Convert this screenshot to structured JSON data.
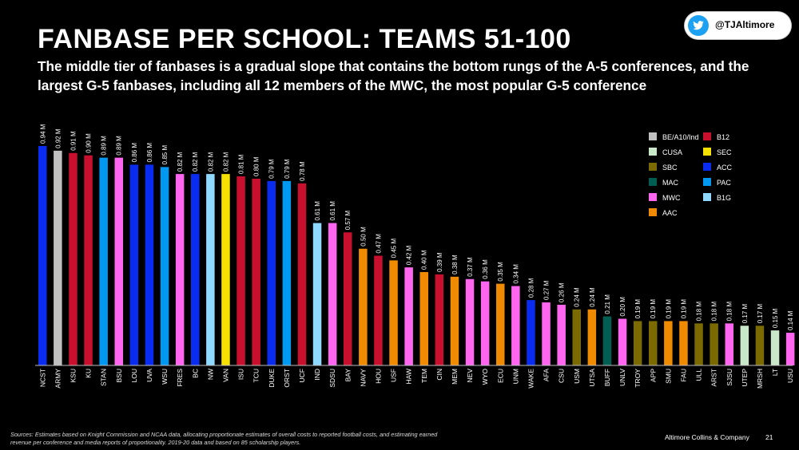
{
  "header": {
    "title": "FANBASE PER SCHOOL:  TEAMS 51-100",
    "subtitle": "The middle tier of fanbases is a gradual slope that contains the bottom rungs of the A-5 conferences, and the largest G-5 fanbases, including all 12 members of the MWC, the most popular G-5 conference",
    "twitter_handle": "@TJAltimore"
  },
  "footer": {
    "sources": "Sources:  Estimates based on Knight Commission and NCAA data, allocating proportionate estimates of overall costs to reported football costs, and estimating earned revenue per conference and media reports of proportionality.  2019-20 data and based on 85 scholarship players.",
    "company": "Altimore Collins & Company",
    "page": "21"
  },
  "colors": {
    "BE/A10/Ind": "#c0c0c0",
    "B12": "#c8102e",
    "CUSA": "#c9e7c9",
    "SEC": "#f5e000",
    "SBC": "#7a6a00",
    "ACC": "#0a2cf0",
    "MAC": "#005f52",
    "PAC": "#0098f0",
    "MWC": "#ff66ef",
    "B1G": "#8fd8ff",
    "AAC": "#f08a00"
  },
  "chart_data": {
    "type": "bar",
    "title": "FANBASE PER SCHOOL:  TEAMS 51-100",
    "ylabel": "",
    "xlabel": "",
    "ylim": [
      0,
      0.94
    ],
    "legend_position": "top-right",
    "legend": [
      {
        "label": "BE/A10/Ind",
        "conf": "BE/A10/Ind"
      },
      {
        "label": "B12",
        "conf": "B12"
      },
      {
        "label": "CUSA",
        "conf": "CUSA"
      },
      {
        "label": "SEC",
        "conf": "SEC"
      },
      {
        "label": "SBC",
        "conf": "SBC"
      },
      {
        "label": "ACC",
        "conf": "ACC"
      },
      {
        "label": "MAC",
        "conf": "MAC"
      },
      {
        "label": "PAC",
        "conf": "PAC"
      },
      {
        "label": "MWC",
        "conf": "MWC"
      },
      {
        "label": "B1G",
        "conf": "B1G"
      },
      {
        "label": "AAC",
        "conf": "AAC"
      }
    ],
    "bars": [
      {
        "team": "NCST",
        "value": 0.94,
        "label": "0.94 M",
        "conf": "ACC"
      },
      {
        "team": "ARMY",
        "value": 0.92,
        "label": "0.92 M",
        "conf": "BE/A10/Ind"
      },
      {
        "team": "KSU",
        "value": 0.91,
        "label": "0.91 M",
        "conf": "B12"
      },
      {
        "team": "KU",
        "value": 0.9,
        "label": "0.90 M",
        "conf": "B12"
      },
      {
        "team": "STAN",
        "value": 0.89,
        "label": "0.89 M",
        "conf": "PAC"
      },
      {
        "team": "BSU",
        "value": 0.89,
        "label": "0.89 M",
        "conf": "MWC"
      },
      {
        "team": "LOU",
        "value": 0.86,
        "label": "0.86 M",
        "conf": "ACC"
      },
      {
        "team": "UVA",
        "value": 0.86,
        "label": "0.86 M",
        "conf": "ACC"
      },
      {
        "team": "WSU",
        "value": 0.85,
        "label": "0.85 M",
        "conf": "PAC"
      },
      {
        "team": "FRES",
        "value": 0.82,
        "label": "0.82 M",
        "conf": "MWC"
      },
      {
        "team": "BC",
        "value": 0.82,
        "label": "0.82 M",
        "conf": "ACC"
      },
      {
        "team": "NW",
        "value": 0.82,
        "label": "0.82 M",
        "conf": "B1G"
      },
      {
        "team": "VAN",
        "value": 0.82,
        "label": "0.82 M",
        "conf": "SEC"
      },
      {
        "team": "ISU",
        "value": 0.81,
        "label": "0.81 M",
        "conf": "B12"
      },
      {
        "team": "TCU",
        "value": 0.8,
        "label": "0.80 M",
        "conf": "B12"
      },
      {
        "team": "DUKE",
        "value": 0.79,
        "label": "0.79 M",
        "conf": "ACC"
      },
      {
        "team": "ORST",
        "value": 0.79,
        "label": "0.79 M",
        "conf": "PAC"
      },
      {
        "team": "UCF",
        "value": 0.78,
        "label": "0.78 M",
        "conf": "B12"
      },
      {
        "team": "IND",
        "value": 0.61,
        "label": "0.61 M",
        "conf": "B1G"
      },
      {
        "team": "SDSU",
        "value": 0.61,
        "label": "0.61 M",
        "conf": "MWC"
      },
      {
        "team": "BAY",
        "value": 0.57,
        "label": "0.57 M",
        "conf": "B12"
      },
      {
        "team": "NAVY",
        "value": 0.5,
        "label": "0.50 M",
        "conf": "AAC"
      },
      {
        "team": "HOU",
        "value": 0.47,
        "label": "0.47 M",
        "conf": "B12"
      },
      {
        "team": "USF",
        "value": 0.45,
        "label": "0.45 M",
        "conf": "AAC"
      },
      {
        "team": "HAW",
        "value": 0.42,
        "label": "0.42 M",
        "conf": "MWC"
      },
      {
        "team": "TEM",
        "value": 0.4,
        "label": "0.40 M",
        "conf": "AAC"
      },
      {
        "team": "CIN",
        "value": 0.39,
        "label": "0.39 M",
        "conf": "B12"
      },
      {
        "team": "MEM",
        "value": 0.38,
        "label": "0.38 M",
        "conf": "AAC"
      },
      {
        "team": "NEV",
        "value": 0.37,
        "label": "0.37 M",
        "conf": "MWC"
      },
      {
        "team": "WYO",
        "value": 0.36,
        "label": "0.36 M",
        "conf": "MWC"
      },
      {
        "team": "ECU",
        "value": 0.35,
        "label": "0.35 M",
        "conf": "AAC"
      },
      {
        "team": "UNM",
        "value": 0.34,
        "label": "0.34 M",
        "conf": "MWC"
      },
      {
        "team": "WAKE",
        "value": 0.28,
        "label": "0.28 M",
        "conf": "ACC"
      },
      {
        "team": "AFA",
        "value": 0.27,
        "label": "0.27 M",
        "conf": "MWC"
      },
      {
        "team": "CSU",
        "value": 0.26,
        "label": "0.26 M",
        "conf": "MWC"
      },
      {
        "team": "USM",
        "value": 0.24,
        "label": "0.24 M",
        "conf": "SBC"
      },
      {
        "team": "UTSA",
        "value": 0.24,
        "label": "0.24 M",
        "conf": "AAC"
      },
      {
        "team": "BUFF",
        "value": 0.21,
        "label": "0.21 M",
        "conf": "MAC"
      },
      {
        "team": "UNLV",
        "value": 0.2,
        "label": "0.20 M",
        "conf": "MWC"
      },
      {
        "team": "TROY",
        "value": 0.19,
        "label": "0.19 M",
        "conf": "SBC"
      },
      {
        "team": "APP",
        "value": 0.19,
        "label": "0.19 M",
        "conf": "SBC"
      },
      {
        "team": "SMU",
        "value": 0.19,
        "label": "0.19 M",
        "conf": "AAC"
      },
      {
        "team": "FAU",
        "value": 0.19,
        "label": "0.19 M",
        "conf": "AAC"
      },
      {
        "team": "ULL",
        "value": 0.18,
        "label": "0.18 M",
        "conf": "SBC"
      },
      {
        "team": "ARST",
        "value": 0.18,
        "label": "0.18 M",
        "conf": "SBC"
      },
      {
        "team": "SJSU",
        "value": 0.18,
        "label": "0.18 M",
        "conf": "MWC"
      },
      {
        "team": "UTEP",
        "value": 0.17,
        "label": "0.17 M",
        "conf": "CUSA"
      },
      {
        "team": "MRSH",
        "value": 0.17,
        "label": "0.17 M",
        "conf": "SBC"
      },
      {
        "team": "LT",
        "value": 0.15,
        "label": "0.15 M",
        "conf": "CUSA"
      },
      {
        "team": "USU",
        "value": 0.14,
        "label": "0.14 M",
        "conf": "MWC"
      }
    ]
  }
}
